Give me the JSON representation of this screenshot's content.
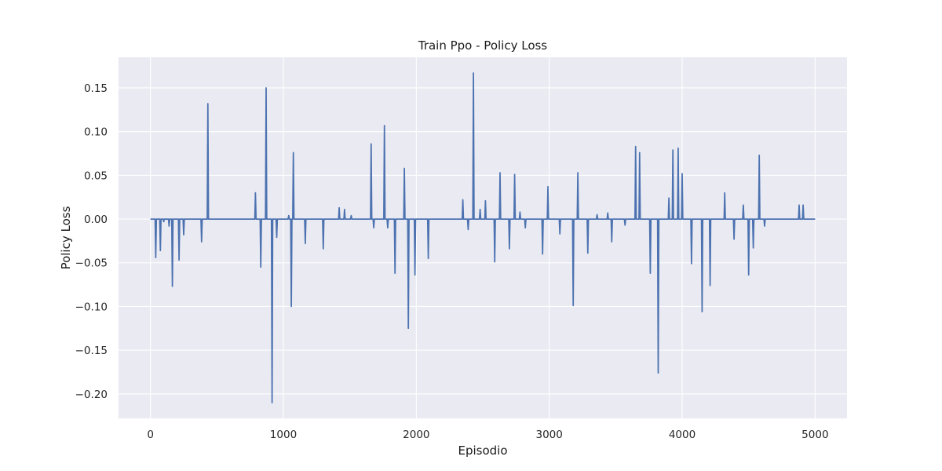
{
  "chart_data": {
    "type": "line",
    "title": "Train Ppo - Policy Loss",
    "xlabel": "Episodio",
    "ylabel": "Policy Loss",
    "xlim": [
      -240,
      5240
    ],
    "ylim": [
      -0.228,
      0.185
    ],
    "x_ticks": [
      0,
      1000,
      2000,
      3000,
      4000,
      5000
    ],
    "x_tick_labels": [
      "0",
      "1000",
      "2000",
      "3000",
      "4000",
      "5000"
    ],
    "y_ticks": [
      -0.2,
      -0.15,
      -0.1,
      -0.05,
      0.0,
      0.05,
      0.1,
      0.15
    ],
    "y_tick_labels": [
      "−0.20",
      "−0.15",
      "−0.10",
      "−0.05",
      "0.00",
      "0.05",
      "0.10",
      "0.15"
    ],
    "grid": true,
    "legend": false,
    "colors": {
      "background": "#eaeaf2",
      "grid": "#ffffff",
      "line": "#4c72b0"
    },
    "series": [
      {
        "x_range": [
          0,
          5000
        ],
        "baseline": 0.0,
        "spikes": [
          {
            "x": 40,
            "y": -0.044
          },
          {
            "x": 75,
            "y": -0.036
          },
          {
            "x": 100,
            "y": -0.003
          },
          {
            "x": 140,
            "y": -0.008
          },
          {
            "x": 165,
            "y": -0.077
          },
          {
            "x": 215,
            "y": -0.047
          },
          {
            "x": 250,
            "y": -0.018
          },
          {
            "x": 385,
            "y": -0.026
          },
          {
            "x": 432,
            "y": 0.132
          },
          {
            "x": 790,
            "y": 0.03
          },
          {
            "x": 830,
            "y": -0.055
          },
          {
            "x": 870,
            "y": 0.15
          },
          {
            "x": 915,
            "y": -0.21
          },
          {
            "x": 950,
            "y": -0.021
          },
          {
            "x": 1040,
            "y": 0.004
          },
          {
            "x": 1060,
            "y": -0.1
          },
          {
            "x": 1075,
            "y": 0.076
          },
          {
            "x": 1165,
            "y": -0.028
          },
          {
            "x": 1300,
            "y": -0.034
          },
          {
            "x": 1420,
            "y": 0.013
          },
          {
            "x": 1460,
            "y": 0.011
          },
          {
            "x": 1510,
            "y": 0.004
          },
          {
            "x": 1660,
            "y": 0.086
          },
          {
            "x": 1680,
            "y": -0.01
          },
          {
            "x": 1760,
            "y": 0.107
          },
          {
            "x": 1785,
            "y": -0.01
          },
          {
            "x": 1840,
            "y": -0.062
          },
          {
            "x": 1910,
            "y": 0.058
          },
          {
            "x": 1940,
            "y": -0.125
          },
          {
            "x": 1990,
            "y": -0.064
          },
          {
            "x": 2090,
            "y": -0.045
          },
          {
            "x": 2350,
            "y": 0.022
          },
          {
            "x": 2390,
            "y": -0.012
          },
          {
            "x": 2430,
            "y": 0.167
          },
          {
            "x": 2480,
            "y": 0.011
          },
          {
            "x": 2520,
            "y": 0.021
          },
          {
            "x": 2590,
            "y": -0.049
          },
          {
            "x": 2630,
            "y": 0.053
          },
          {
            "x": 2700,
            "y": -0.034
          },
          {
            "x": 2740,
            "y": 0.051
          },
          {
            "x": 2780,
            "y": 0.008
          },
          {
            "x": 2820,
            "y": -0.01
          },
          {
            "x": 2950,
            "y": -0.04
          },
          {
            "x": 2990,
            "y": 0.037
          },
          {
            "x": 3080,
            "y": -0.017
          },
          {
            "x": 3180,
            "y": -0.099
          },
          {
            "x": 3215,
            "y": 0.053
          },
          {
            "x": 3290,
            "y": -0.039
          },
          {
            "x": 3360,
            "y": 0.005
          },
          {
            "x": 3440,
            "y": 0.007
          },
          {
            "x": 3470,
            "y": -0.026
          },
          {
            "x": 3570,
            "y": -0.007
          },
          {
            "x": 3650,
            "y": 0.083
          },
          {
            "x": 3680,
            "y": 0.076
          },
          {
            "x": 3760,
            "y": -0.062
          },
          {
            "x": 3820,
            "y": -0.176
          },
          {
            "x": 3900,
            "y": 0.024
          },
          {
            "x": 3930,
            "y": 0.079
          },
          {
            "x": 3970,
            "y": 0.081
          },
          {
            "x": 4000,
            "y": 0.052
          },
          {
            "x": 4070,
            "y": -0.051
          },
          {
            "x": 4150,
            "y": -0.106
          },
          {
            "x": 4210,
            "y": -0.076
          },
          {
            "x": 4320,
            "y": 0.03
          },
          {
            "x": 4390,
            "y": -0.023
          },
          {
            "x": 4460,
            "y": 0.016
          },
          {
            "x": 4500,
            "y": -0.064
          },
          {
            "x": 4535,
            "y": -0.033
          },
          {
            "x": 4580,
            "y": 0.073
          },
          {
            "x": 4620,
            "y": -0.008
          },
          {
            "x": 4880,
            "y": 0.016
          },
          {
            "x": 4910,
            "y": 0.016
          }
        ]
      }
    ]
  }
}
